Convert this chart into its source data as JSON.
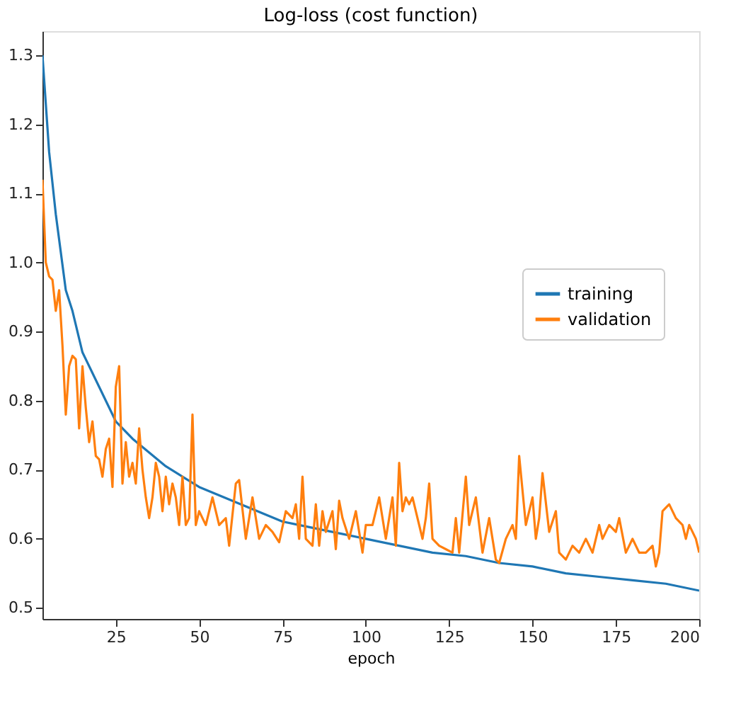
{
  "chart_data": {
    "type": "line",
    "title": "Log-loss (cost function)",
    "xlabel": "epoch",
    "xlim": [
      3,
      200
    ],
    "xticks": [
      25,
      50,
      75,
      100,
      125,
      150,
      175,
      200
    ],
    "ylim": [
      0.484,
      1.335
    ],
    "yticks": [
      0.5,
      0.6,
      0.7,
      0.8,
      0.9,
      {
        "value": 1.0,
        "label": "1.0"
      },
      1.1,
      1.2,
      1.3
    ],
    "grid": false,
    "legend": "right",
    "line_style": "solid",
    "marker": "none",
    "series": [
      {
        "name": "training",
        "color": "#1f77b4",
        "x": [
          3,
          5,
          7,
          10,
          12,
          15,
          20,
          25,
          30,
          35,
          40,
          45,
          50,
          55,
          60,
          65,
          70,
          75,
          80,
          90,
          100,
          110,
          120,
          130,
          140,
          150,
          160,
          170,
          180,
          190,
          200
        ],
        "values": [
          1.3,
          1.16,
          1.07,
          0.96,
          0.93,
          0.87,
          0.82,
          0.77,
          0.745,
          0.725,
          0.705,
          0.69,
          0.675,
          0.665,
          0.655,
          0.645,
          0.635,
          0.625,
          0.62,
          0.61,
          0.6,
          0.59,
          0.58,
          0.575,
          0.565,
          0.56,
          0.55,
          0.545,
          0.54,
          0.535,
          0.525
        ]
      },
      {
        "name": "validation",
        "color": "#ff7f0e",
        "x": [
          3,
          4,
          5,
          6,
          7,
          8,
          9,
          10,
          11,
          12,
          13,
          14,
          15,
          16,
          17,
          18,
          19,
          20,
          21,
          22,
          23,
          24,
          25,
          26,
          27,
          28,
          29,
          30,
          31,
          32,
          33,
          34,
          35,
          36,
          37,
          38,
          39,
          40,
          41,
          42,
          43,
          44,
          45,
          46,
          47,
          48,
          49,
          50,
          52,
          54,
          56,
          58,
          59,
          61,
          62,
          64,
          66,
          68,
          70,
          72,
          74,
          76,
          78,
          79,
          80,
          81,
          82,
          84,
          85,
          86,
          87,
          88,
          90,
          91,
          92,
          93,
          95,
          97,
          99,
          100,
          102,
          104,
          106,
          107,
          108,
          109,
          110,
          111,
          112,
          113,
          114,
          116,
          117,
          118,
          119,
          120,
          122,
          124,
          126,
          127,
          128,
          130,
          131,
          133,
          135,
          137,
          139,
          140,
          142,
          144,
          145,
          146,
          148,
          150,
          151,
          152,
          153,
          155,
          157,
          158,
          160,
          162,
          164,
          166,
          168,
          170,
          171,
          173,
          175,
          176,
          178,
          180,
          182,
          184,
          186,
          187,
          188,
          189,
          190,
          191,
          193,
          195,
          196,
          197,
          199,
          200
        ],
        "values": [
          1.12,
          1.0,
          0.98,
          0.975,
          0.93,
          0.96,
          0.88,
          0.78,
          0.85,
          0.865,
          0.86,
          0.76,
          0.85,
          0.79,
          0.74,
          0.77,
          0.72,
          0.715,
          0.69,
          0.73,
          0.745,
          0.675,
          0.82,
          0.85,
          0.68,
          0.74,
          0.69,
          0.71,
          0.68,
          0.76,
          0.7,
          0.66,
          0.63,
          0.66,
          0.71,
          0.69,
          0.64,
          0.69,
          0.65,
          0.68,
          0.66,
          0.62,
          0.69,
          0.62,
          0.63,
          0.78,
          0.62,
          0.64,
          0.62,
          0.66,
          0.62,
          0.63,
          0.59,
          0.68,
          0.685,
          0.6,
          0.66,
          0.6,
          0.62,
          0.61,
          0.595,
          0.64,
          0.63,
          0.65,
          0.6,
          0.69,
          0.6,
          0.59,
          0.65,
          0.59,
          0.64,
          0.61,
          0.64,
          0.585,
          0.655,
          0.63,
          0.6,
          0.64,
          0.58,
          0.62,
          0.62,
          0.66,
          0.6,
          0.63,
          0.66,
          0.59,
          0.71,
          0.64,
          0.66,
          0.65,
          0.66,
          0.62,
          0.6,
          0.63,
          0.68,
          0.6,
          0.59,
          0.585,
          0.58,
          0.63,
          0.58,
          0.69,
          0.62,
          0.66,
          0.58,
          0.63,
          0.57,
          0.565,
          0.6,
          0.62,
          0.6,
          0.72,
          0.62,
          0.66,
          0.6,
          0.63,
          0.695,
          0.61,
          0.64,
          0.58,
          0.57,
          0.59,
          0.58,
          0.6,
          0.58,
          0.62,
          0.6,
          0.62,
          0.61,
          0.63,
          0.58,
          0.6,
          0.58,
          0.58,
          0.59,
          0.56,
          0.58,
          0.64,
          0.645,
          0.65,
          0.63,
          0.62,
          0.6,
          0.62,
          0.6,
          0.58
        ]
      }
    ]
  }
}
